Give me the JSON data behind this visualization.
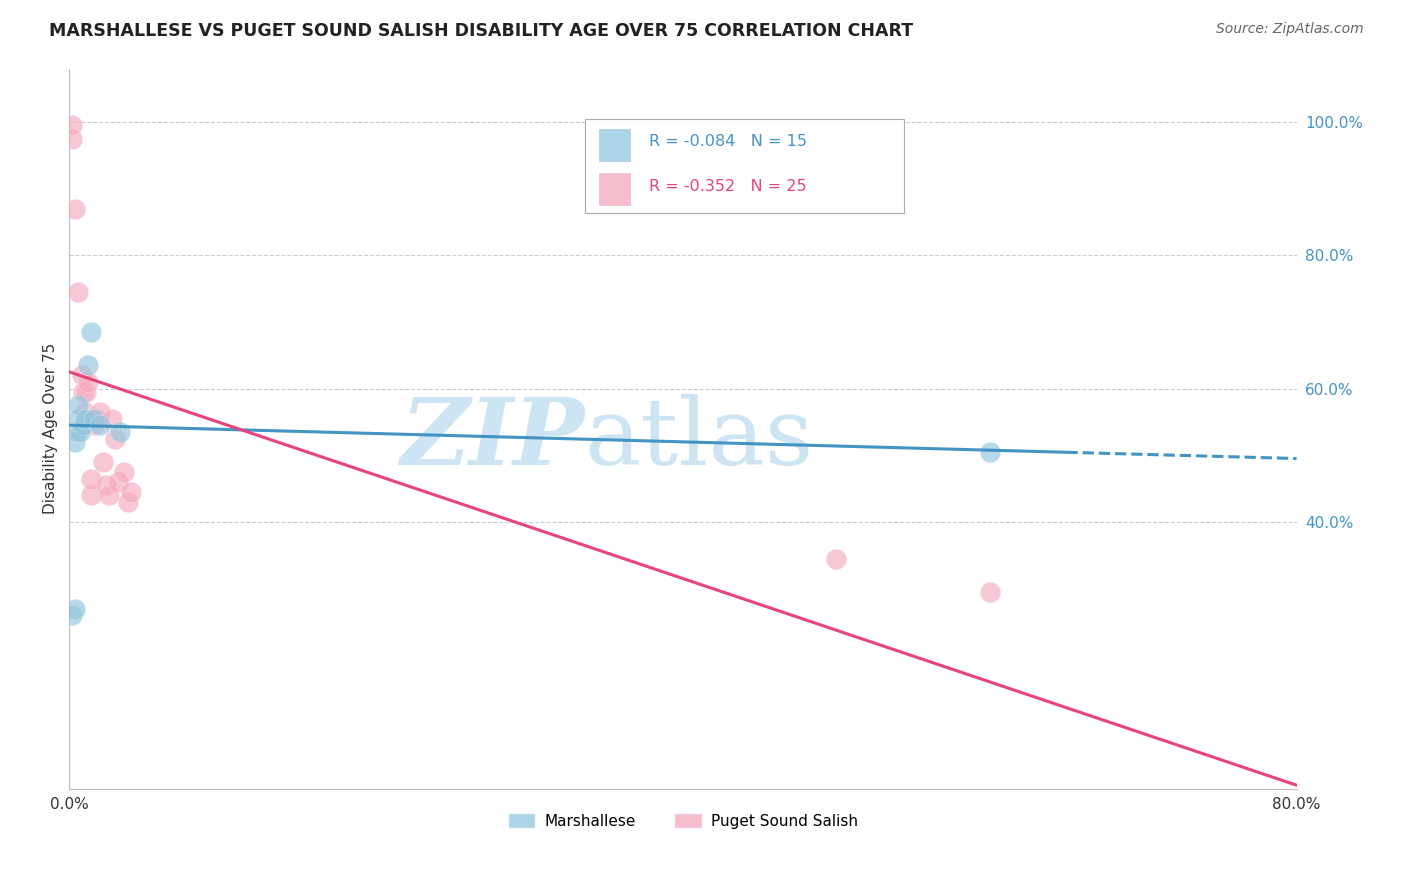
{
  "title": "MARSHALLESE VS PUGET SOUND SALISH DISABILITY AGE OVER 75 CORRELATION CHART",
  "source": "Source: ZipAtlas.com",
  "ylabel": "Disability Age Over 75",
  "legend_label1": "Marshallese",
  "legend_label2": "Puget Sound Salish",
  "r1": -0.084,
  "n1": 15,
  "r2": -0.352,
  "n2": 25,
  "xmin": 0.0,
  "xmax": 0.8,
  "ymin": 0.0,
  "ymax": 1.08,
  "yticks": [
    0.4,
    0.6,
    0.8,
    1.0
  ],
  "ytick_labels": [
    "40.0%",
    "60.0%",
    "80.0%",
    "100.0%"
  ],
  "xticks": [
    0.0,
    0.1,
    0.2,
    0.3,
    0.4,
    0.5,
    0.6,
    0.7,
    0.8
  ],
  "xtick_labels": [
    "0.0%",
    "",
    "",
    "",
    "",
    "",
    "",
    "",
    "80.0%"
  ],
  "color_blue": "#92c5de",
  "color_pink": "#f4a9bc",
  "line_color_blue": "#4393c3",
  "line_color_pink": "#e8437a",
  "grid_color": "#cccccc",
  "marshallese_x": [
    0.002,
    0.004,
    0.004,
    0.005,
    0.006,
    0.006,
    0.007,
    0.009,
    0.01,
    0.012,
    0.014,
    0.016,
    0.02,
    0.033,
    0.6
  ],
  "marshallese_y": [
    0.26,
    0.27,
    0.52,
    0.535,
    0.555,
    0.575,
    0.535,
    0.545,
    0.555,
    0.635,
    0.685,
    0.555,
    0.545,
    0.535,
    0.505
  ],
  "salish_x": [
    0.002,
    0.002,
    0.004,
    0.006,
    0.008,
    0.009,
    0.01,
    0.011,
    0.012,
    0.014,
    0.014,
    0.016,
    0.018,
    0.02,
    0.022,
    0.024,
    0.026,
    0.028,
    0.03,
    0.032,
    0.036,
    0.038,
    0.04,
    0.5,
    0.6
  ],
  "salish_y": [
    0.975,
    0.995,
    0.87,
    0.745,
    0.62,
    0.595,
    0.565,
    0.595,
    0.61,
    0.44,
    0.465,
    0.545,
    0.555,
    0.565,
    0.49,
    0.455,
    0.44,
    0.555,
    0.525,
    0.46,
    0.475,
    0.43,
    0.445,
    0.345,
    0.295
  ],
  "blue_line_x0": 0.0,
  "blue_line_y0": 0.545,
  "blue_line_x1": 0.8,
  "blue_line_y1": 0.495,
  "blue_line_solid_end": 0.65,
  "blue_line_y_solid_end": 0.509,
  "pink_line_x0": 0.0,
  "pink_line_y0": 0.625,
  "pink_line_x1": 0.8,
  "pink_line_y1": 0.005
}
